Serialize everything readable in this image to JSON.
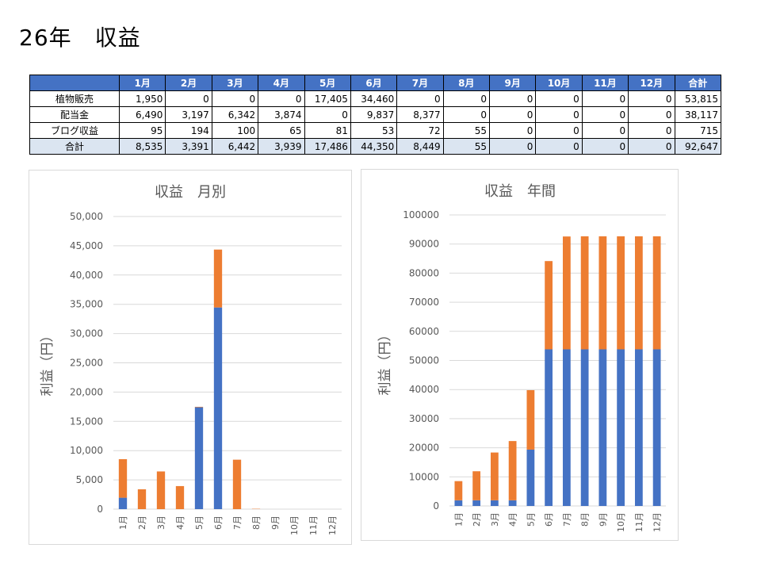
{
  "page": {
    "title": "26年　収益"
  },
  "table": {
    "headers": [
      "",
      "1月",
      "2月",
      "3月",
      "4月",
      "5月",
      "6月",
      "7月",
      "8月",
      "9月",
      "10月",
      "11月",
      "12月",
      "合計"
    ],
    "rows": [
      {
        "label": "植物販売",
        "cells": [
          "1,950",
          "0",
          "0",
          "0",
          "17,405",
          "34,460",
          "0",
          "0",
          "0",
          "0",
          "0",
          "0",
          "53,815"
        ]
      },
      {
        "label": "配当金",
        "cells": [
          "6,490",
          "3,197",
          "6,342",
          "3,874",
          "0",
          "9,837",
          "8,377",
          "0",
          "0",
          "0",
          "0",
          "0",
          "38,117"
        ]
      },
      {
        "label": "ブログ収益",
        "cells": [
          "95",
          "194",
          "100",
          "65",
          "81",
          "53",
          "72",
          "55",
          "0",
          "0",
          "0",
          "0",
          "715"
        ]
      },
      {
        "label": "合計",
        "cells": [
          "8,535",
          "3,391",
          "6,442",
          "3,939",
          "17,486",
          "44,350",
          "8,449",
          "55",
          "0",
          "0",
          "0",
          "0",
          "92,647"
        ]
      }
    ]
  },
  "colors": {
    "series_blue": "#4472c4",
    "series_orange": "#ed7d31",
    "header_bg": "#4472c4",
    "total_row_bg": "#dbe5f1",
    "grid": "#d9d9d9"
  },
  "chart_data": [
    {
      "type": "bar",
      "stacked": true,
      "title": "収益　月別",
      "ylabel": "利益（円）",
      "xlabel": "",
      "ylim": [
        0,
        50000
      ],
      "yticks": [
        "0",
        "5,000",
        "10,000",
        "15,000",
        "20,000",
        "25,000",
        "30,000",
        "35,000",
        "40,000",
        "45,000",
        "50,000"
      ],
      "grid": true,
      "legend": "none",
      "categories": [
        "1月",
        "2月",
        "3月",
        "4月",
        "5月",
        "6月",
        "7月",
        "8月",
        "9月",
        "10月",
        "11月",
        "12月"
      ],
      "series": [
        {
          "color": "#4472c4",
          "values": [
            1950,
            0,
            0,
            0,
            17405,
            34460,
            0,
            0,
            0,
            0,
            0,
            0
          ]
        },
        {
          "color": "#ed7d31",
          "values": [
            6585,
            3391,
            6442,
            3939,
            81,
            9890,
            8449,
            55,
            0,
            0,
            0,
            0
          ]
        }
      ]
    },
    {
      "type": "bar",
      "stacked": true,
      "title": "収益　年間",
      "ylabel": "利益（円）",
      "xlabel": "",
      "ylim": [
        0,
        100000
      ],
      "yticks": [
        "0",
        "10000",
        "20000",
        "30000",
        "40000",
        "50000",
        "60000",
        "70000",
        "80000",
        "90000",
        "100000"
      ],
      "grid": true,
      "legend": "none",
      "categories": [
        "1月",
        "2月",
        "3月",
        "4月",
        "5月",
        "6月",
        "7月",
        "8月",
        "9月",
        "10月",
        "11月",
        "12月"
      ],
      "series": [
        {
          "color": "#4472c4",
          "values": [
            1950,
            1950,
            1950,
            1950,
            19355,
            53815,
            53815,
            53815,
            53815,
            53815,
            53815,
            53815
          ]
        },
        {
          "color": "#ed7d31",
          "values": [
            6585,
            9976,
            16418,
            20357,
            20438,
            30328,
            38777,
            38832,
            38832,
            38832,
            38832,
            38832
          ]
        }
      ]
    }
  ]
}
